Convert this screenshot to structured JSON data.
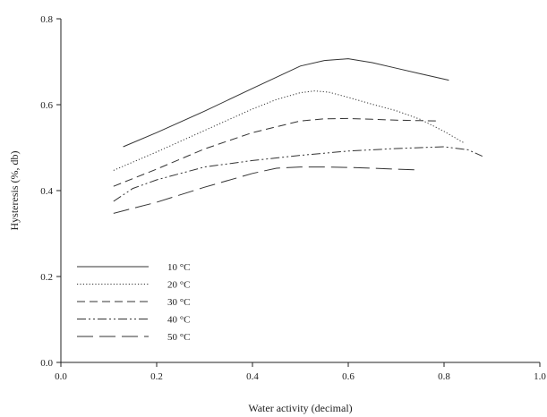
{
  "chart_data": {
    "type": "line",
    "title": "",
    "xlabel": "Water activity (decimal)",
    "ylabel": "Hysteresis (%, db)",
    "xlim": [
      0.0,
      1.0
    ],
    "ylim": [
      0.0,
      0.8
    ],
    "x_ticks": [
      "0.0",
      "0.2",
      "0.4",
      "0.6",
      "0.8",
      "1.0"
    ],
    "y_ticks": [
      "0.0",
      "0.2",
      "0.4",
      "0.6",
      "0.8"
    ],
    "grid": false,
    "legend_position": "bottom-left",
    "series": [
      {
        "name": "10 °C",
        "dash": "solid",
        "x": [
          0.13,
          0.2,
          0.3,
          0.4,
          0.5,
          0.55,
          0.6,
          0.65,
          0.7,
          0.75,
          0.81
        ],
        "y": [
          0.502,
          0.535,
          0.585,
          0.638,
          0.69,
          0.703,
          0.707,
          0.698,
          0.685,
          0.672,
          0.657
        ]
      },
      {
        "name": "20 °C",
        "dash": "dotted",
        "x": [
          0.11,
          0.2,
          0.3,
          0.4,
          0.45,
          0.5,
          0.53,
          0.56,
          0.6,
          0.65,
          0.7,
          0.75,
          0.8,
          0.84
        ],
        "y": [
          0.447,
          0.49,
          0.54,
          0.59,
          0.612,
          0.628,
          0.632,
          0.629,
          0.617,
          0.601,
          0.586,
          0.566,
          0.538,
          0.512
        ]
      },
      {
        "name": "30 °C",
        "dash": "dashed",
        "x": [
          0.11,
          0.2,
          0.3,
          0.4,
          0.5,
          0.55,
          0.6,
          0.65,
          0.7,
          0.75,
          0.79
        ],
        "y": [
          0.41,
          0.45,
          0.497,
          0.535,
          0.562,
          0.567,
          0.568,
          0.566,
          0.564,
          0.563,
          0.562
        ]
      },
      {
        "name": "40 °C",
        "dash": "dash-dot-dot",
        "x": [
          0.11,
          0.15,
          0.2,
          0.3,
          0.4,
          0.5,
          0.6,
          0.7,
          0.75,
          0.8,
          0.85,
          0.88
        ],
        "y": [
          0.375,
          0.405,
          0.425,
          0.455,
          0.47,
          0.482,
          0.492,
          0.498,
          0.5,
          0.502,
          0.495,
          0.48
        ]
      },
      {
        "name": "50 °C",
        "dash": "long-dash",
        "x": [
          0.11,
          0.2,
          0.3,
          0.4,
          0.45,
          0.5,
          0.55,
          0.6,
          0.65,
          0.7,
          0.75
        ],
        "y": [
          0.347,
          0.373,
          0.408,
          0.44,
          0.452,
          0.455,
          0.455,
          0.454,
          0.452,
          0.45,
          0.448
        ]
      }
    ]
  },
  "colors": {
    "axis": "#222222",
    "lines": "#333333",
    "background": "#ffffff"
  }
}
